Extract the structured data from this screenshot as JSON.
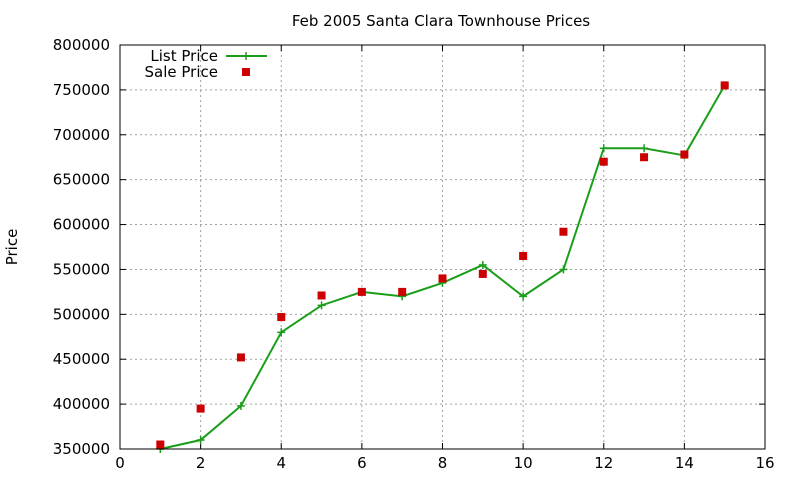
{
  "chart_data": {
    "type": "line",
    "title": "Feb 2005 Santa Clara Townhouse Prices",
    "xlabel": "",
    "ylabel": "Price",
    "xlim": [
      0,
      16
    ],
    "ylim": [
      350000,
      800000
    ],
    "xticks": [
      0,
      2,
      4,
      6,
      8,
      10,
      12,
      14,
      16
    ],
    "yticks": [
      350000,
      400000,
      450000,
      500000,
      550000,
      600000,
      650000,
      700000,
      750000,
      800000
    ],
    "grid": true,
    "legend_position": "top-left",
    "series": [
      {
        "name": "List Price",
        "style": "line+cross",
        "color": "#1a9e1a",
        "points": [
          [
            1,
            350000
          ],
          [
            2,
            360000
          ],
          [
            3,
            398000
          ],
          [
            4,
            480000
          ],
          [
            5,
            510000
          ],
          [
            6,
            525000
          ],
          [
            7,
            520000
          ],
          [
            8,
            535000
          ],
          [
            9,
            555000
          ],
          [
            10,
            520000
          ],
          [
            11,
            550000
          ],
          [
            12,
            685000
          ],
          [
            13,
            685000
          ],
          [
            14,
            677000
          ],
          [
            15,
            755000
          ]
        ]
      },
      {
        "name": "Sale Price",
        "style": "square",
        "color": "#cc0000",
        "points": [
          [
            1,
            355000
          ],
          [
            2,
            395000
          ],
          [
            3,
            452000
          ],
          [
            4,
            497000
          ],
          [
            5,
            521000
          ],
          [
            6,
            525000
          ],
          [
            7,
            525000
          ],
          [
            8,
            540000
          ],
          [
            9,
            545000
          ],
          [
            10,
            565000
          ],
          [
            11,
            592000
          ],
          [
            12,
            670000
          ],
          [
            13,
            675000
          ],
          [
            14,
            678000
          ],
          [
            15,
            755000
          ]
        ]
      }
    ]
  }
}
